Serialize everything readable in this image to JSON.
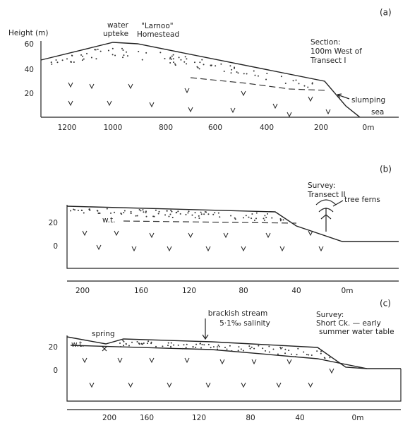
{
  "panels": [
    {
      "label": "(a)",
      "y_axis_title": "Height (m)",
      "y_ticks": [
        "60",
        "40",
        "20"
      ],
      "x_ticks": [
        "1200",
        "1000",
        "800",
        "600",
        "400",
        "200",
        "0m"
      ],
      "annotations": [
        "water",
        "upteke",
        "\"Larnoo\"",
        "Homestead",
        "Section:",
        "100m West of",
        "Transect I",
        "slumping",
        "sea"
      ]
    },
    {
      "label": "(b)",
      "y_ticks": [
        "20",
        "0"
      ],
      "x_ticks": [
        "200",
        "160",
        "120",
        "80",
        "40",
        "0m"
      ],
      "annotations": [
        "Survey:",
        "Transect II",
        "tree ferns",
        "w.t."
      ]
    },
    {
      "label": "(c)",
      "y_ticks": [
        "20",
        "0"
      ],
      "x_ticks": [
        "200",
        "160",
        "120",
        "80",
        "40",
        "0m"
      ],
      "annotations": [
        "brackish stream",
        "5·1‰ salinity",
        "spring",
        "w.t.",
        "Survey:",
        "Short Ck. — early",
        "summer water table"
      ]
    }
  ]
}
